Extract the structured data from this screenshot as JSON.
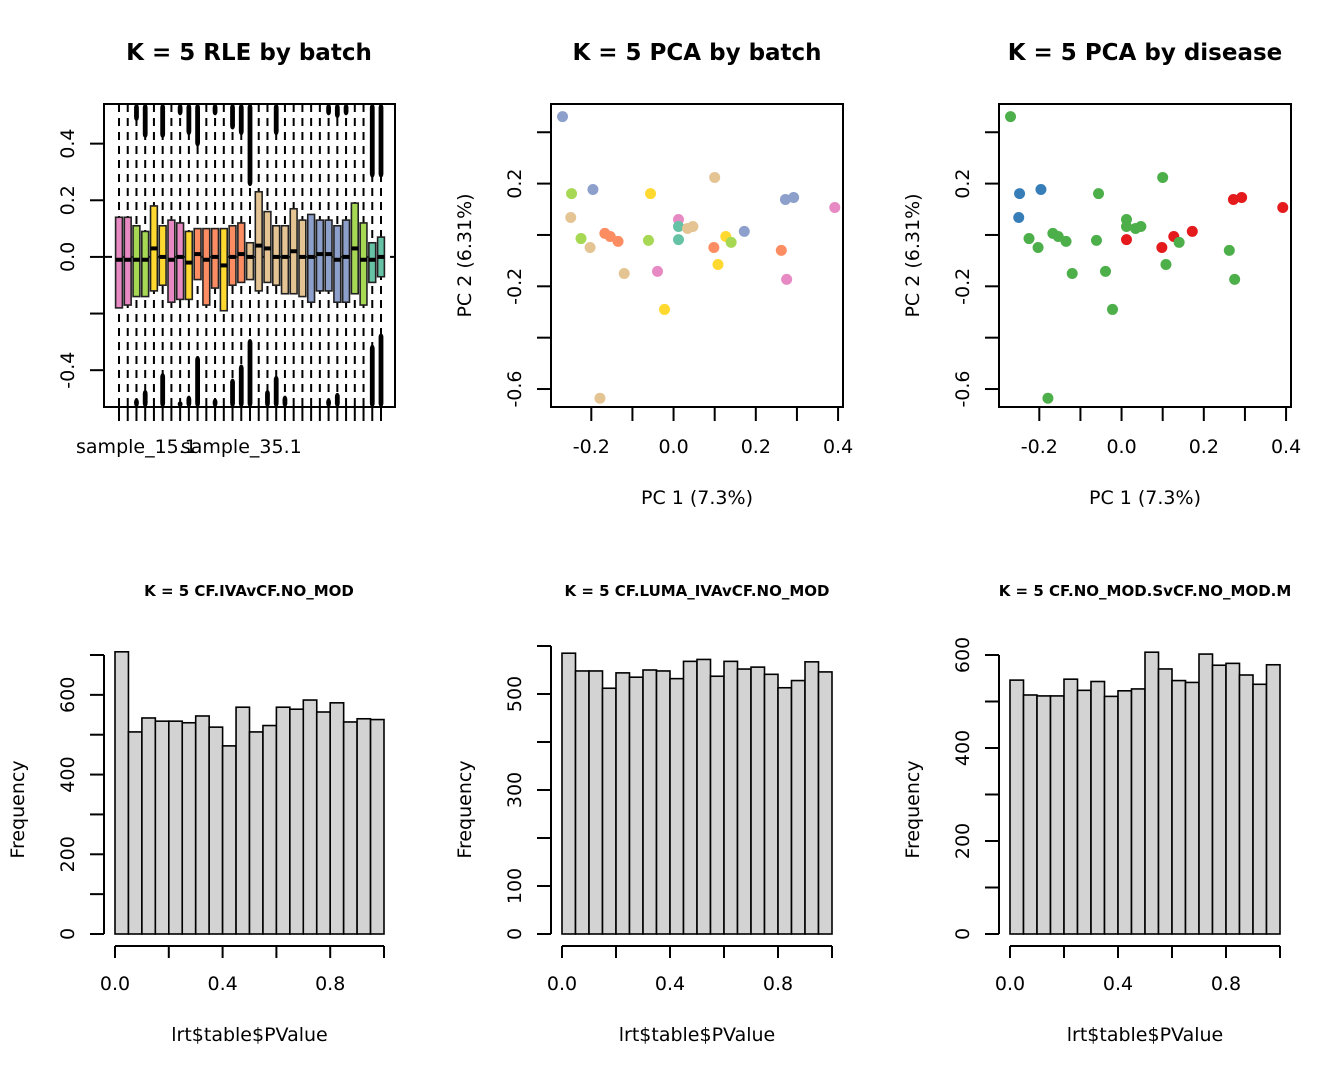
{
  "chart_data": [
    {
      "id": "rle",
      "type": "box",
      "title": "K = 5 RLE by batch",
      "xlabel": "",
      "ylabel": "",
      "ylim": [
        -0.53,
        0.54
      ],
      "yticks": [
        -0.4,
        -0.2,
        0.0,
        0.2,
        0.4
      ],
      "ytick_labels": [
        "-0.4",
        "",
        "0.0",
        "0.2",
        "0.4"
      ],
      "xtick_labels_shown": [
        {
          "index": 2,
          "label": "sample_15.1"
        },
        {
          "index": 14,
          "label": "sample_35.1"
        }
      ],
      "boxes": [
        {
          "batch": "pink",
          "q1": -0.18,
          "median": -0.01,
          "q3": 0.14,
          "top_outliers": 0.0,
          "bottom_outliers": 0.0
        },
        {
          "batch": "pink",
          "q1": -0.17,
          "median": -0.01,
          "q3": 0.14,
          "top_outliers": 0.0,
          "bottom_outliers": 0.0
        },
        {
          "batch": "green",
          "q1": -0.14,
          "median": -0.01,
          "q3": 0.11,
          "top_outliers": 0.48,
          "bottom_outliers": -0.5
        },
        {
          "batch": "green",
          "q1": -0.14,
          "median": -0.01,
          "q3": 0.09,
          "top_outliers": 0.42,
          "bottom_outliers": -0.47
        },
        {
          "batch": "yellow",
          "q1": -0.12,
          "median": 0.03,
          "q3": 0.18,
          "top_outliers": 0.0,
          "bottom_outliers": 0.0
        },
        {
          "batch": "yellow",
          "q1": -0.1,
          "median": 0.0,
          "q3": 0.11,
          "top_outliers": 0.42,
          "bottom_outliers": -0.41
        },
        {
          "batch": "pink",
          "q1": -0.16,
          "median": -0.01,
          "q3": 0.13,
          "top_outliers": 0.0,
          "bottom_outliers": 0.0
        },
        {
          "batch": "pink",
          "q1": -0.15,
          "median": 0.0,
          "q3": 0.12,
          "top_outliers": 0.5,
          "bottom_outliers": -0.51
        },
        {
          "batch": "yellow",
          "q1": -0.15,
          "median": -0.02,
          "q3": 0.09,
          "top_outliers": 0.43,
          "bottom_outliers": -0.49
        },
        {
          "batch": "orange",
          "q1": -0.08,
          "median": 0.01,
          "q3": 0.1,
          "top_outliers": 0.39,
          "bottom_outliers": -0.35
        },
        {
          "batch": "orange",
          "q1": -0.17,
          "median": -0.01,
          "q3": 0.1,
          "top_outliers": 0.0,
          "bottom_outliers": 0.0
        },
        {
          "batch": "orange",
          "q1": -0.11,
          "median": 0.0,
          "q3": 0.1,
          "top_outliers": 0.5,
          "bottom_outliers": -0.5
        },
        {
          "batch": "yellow",
          "q1": -0.19,
          "median": -0.03,
          "q3": 0.1,
          "top_outliers": 0.0,
          "bottom_outliers": 0.0
        },
        {
          "batch": "orange",
          "q1": -0.1,
          "median": 0.0,
          "q3": 0.11,
          "top_outliers": 0.45,
          "bottom_outliers": -0.43
        },
        {
          "batch": "orange",
          "q1": -0.09,
          "median": 0.01,
          "q3": 0.12,
          "top_outliers": 0.43,
          "bottom_outliers": -0.38
        },
        {
          "batch": "tan",
          "q1": -0.08,
          "median": 0.0,
          "q3": 0.05,
          "top_outliers": 0.25,
          "bottom_outliers": -0.29
        },
        {
          "batch": "tan",
          "q1": -0.12,
          "median": 0.04,
          "q3": 0.23,
          "top_outliers": 0.0,
          "bottom_outliers": 0.0
        },
        {
          "batch": "tan",
          "q1": -0.09,
          "median": 0.03,
          "q3": 0.16,
          "top_outliers": 0.0,
          "bottom_outliers": -0.47
        },
        {
          "batch": "tan",
          "q1": -0.1,
          "median": 0.0,
          "q3": 0.11,
          "top_outliers": 0.43,
          "bottom_outliers": -0.42
        },
        {
          "batch": "tan",
          "q1": -0.13,
          "median": 0.0,
          "q3": 0.11,
          "top_outliers": 0.0,
          "bottom_outliers": -0.49
        },
        {
          "batch": "tan",
          "q1": -0.13,
          "median": 0.02,
          "q3": 0.17,
          "top_outliers": 0.0,
          "bottom_outliers": 0.0
        },
        {
          "batch": "tan",
          "q1": -0.14,
          "median": 0.0,
          "q3": 0.13,
          "top_outliers": 0.0,
          "bottom_outliers": 0.0
        },
        {
          "batch": "blue",
          "q1": -0.16,
          "median": 0.0,
          "q3": 0.15,
          "top_outliers": 0.0,
          "bottom_outliers": 0.0
        },
        {
          "batch": "blue",
          "q1": -0.12,
          "median": 0.01,
          "q3": 0.13,
          "top_outliers": 0.0,
          "bottom_outliers": 0.0
        },
        {
          "batch": "blue",
          "q1": -0.12,
          "median": 0.01,
          "q3": 0.13,
          "top_outliers": 0.5,
          "bottom_outliers": -0.5
        },
        {
          "batch": "blue",
          "q1": -0.16,
          "median": -0.01,
          "q3": 0.11,
          "top_outliers": 0.49,
          "bottom_outliers": -0.48
        },
        {
          "batch": "blue",
          "q1": -0.16,
          "median": 0.0,
          "q3": 0.13,
          "top_outliers": 0.5,
          "bottom_outliers": 0.0
        },
        {
          "batch": "green",
          "q1": -0.13,
          "median": 0.03,
          "q3": 0.19,
          "top_outliers": 0.0,
          "bottom_outliers": 0.0
        },
        {
          "batch": "green",
          "q1": -0.17,
          "median": -0.01,
          "q3": 0.12,
          "top_outliers": 0.0,
          "bottom_outliers": 0.0
        },
        {
          "batch": "teal",
          "q1": -0.09,
          "median": -0.01,
          "q3": 0.05,
          "top_outliers": 0.28,
          "bottom_outliers": -0.31
        },
        {
          "batch": "teal",
          "q1": -0.07,
          "median": 0.0,
          "q3": 0.07,
          "top_outliers": 0.28,
          "bottom_outliers": -0.27
        }
      ]
    },
    {
      "id": "pca-batch",
      "type": "scatter",
      "title": "K = 5 PCA by batch",
      "xlabel": "PC 1 (7.3%)",
      "ylabel": "PC 2 (6.31%)",
      "xlim": [
        -0.298,
        0.412
      ],
      "ylim": [
        -0.67,
        0.51
      ],
      "xticks": [
        -0.2,
        -0.1,
        0.0,
        0.1,
        0.2,
        0.3,
        0.4
      ],
      "xtick_labels": [
        "-0.2",
        "",
        "0.0",
        "",
        "0.2",
        "",
        "0.4"
      ],
      "yticks": [
        -0.6,
        -0.4,
        -0.2,
        0.0,
        0.2,
        0.4
      ],
      "ytick_labels": [
        "-0.6",
        "",
        "-0.2",
        "",
        "0.2",
        ""
      ],
      "points": [
        {
          "x": -0.27,
          "y": 0.461,
          "group": "blue"
        },
        {
          "x": -0.248,
          "y": 0.161,
          "group": "green"
        },
        {
          "x": -0.196,
          "y": 0.177,
          "group": "blue"
        },
        {
          "x": -0.25,
          "y": 0.068,
          "group": "tan"
        },
        {
          "x": -0.225,
          "y": -0.014,
          "group": "green"
        },
        {
          "x": -0.167,
          "y": 0.006,
          "group": "orange"
        },
        {
          "x": -0.154,
          "y": -0.006,
          "group": "orange"
        },
        {
          "x": -0.135,
          "y": -0.025,
          "group": "orange"
        },
        {
          "x": -0.203,
          "y": -0.049,
          "group": "tan"
        },
        {
          "x": -0.061,
          "y": -0.021,
          "group": "green"
        },
        {
          "x": -0.056,
          "y": 0.161,
          "group": "yellow"
        },
        {
          "x": -0.12,
          "y": -0.15,
          "group": "tan"
        },
        {
          "x": -0.039,
          "y": -0.142,
          "group": "pink"
        },
        {
          "x": -0.022,
          "y": -0.29,
          "group": "yellow"
        },
        {
          "x": -0.179,
          "y": -0.636,
          "group": "tan"
        },
        {
          "x": 0.012,
          "y": 0.06,
          "group": "pink"
        },
        {
          "x": 0.012,
          "y": 0.033,
          "group": "teal"
        },
        {
          "x": 0.034,
          "y": 0.025,
          "group": "tan"
        },
        {
          "x": 0.047,
          "y": 0.033,
          "group": "tan"
        },
        {
          "x": 0.012,
          "y": -0.018,
          "group": "teal"
        },
        {
          "x": 0.1,
          "y": 0.224,
          "group": "tan"
        },
        {
          "x": 0.098,
          "y": -0.049,
          "group": "orange"
        },
        {
          "x": 0.127,
          "y": -0.006,
          "group": "yellow"
        },
        {
          "x": 0.14,
          "y": -0.029,
          "group": "green"
        },
        {
          "x": 0.172,
          "y": 0.014,
          "group": "blue"
        },
        {
          "x": 0.108,
          "y": -0.115,
          "group": "yellow"
        },
        {
          "x": 0.272,
          "y": 0.138,
          "group": "blue"
        },
        {
          "x": 0.292,
          "y": 0.146,
          "group": "blue"
        },
        {
          "x": 0.262,
          "y": -0.06,
          "group": "orange"
        },
        {
          "x": 0.275,
          "y": -0.173,
          "group": "pink"
        },
        {
          "x": 0.392,
          "y": 0.107,
          "group": "pink"
        }
      ]
    },
    {
      "id": "pca-disease",
      "type": "scatter",
      "title": "K = 5 PCA by disease",
      "xlabel": "PC 1 (7.3%)",
      "ylabel": "PC 2 (6.31%)",
      "xlim": [
        -0.298,
        0.412
      ],
      "ylim": [
        -0.67,
        0.51
      ],
      "xticks": [
        -0.2,
        -0.1,
        0.0,
        0.1,
        0.2,
        0.3,
        0.4
      ],
      "xtick_labels": [
        "-0.2",
        "",
        "0.0",
        "",
        "0.2",
        "",
        "0.4"
      ],
      "yticks": [
        -0.6,
        -0.4,
        -0.2,
        0.0,
        0.2,
        0.4
      ],
      "ytick_labels": [
        "-0.6",
        "",
        "-0.2",
        "",
        "0.2",
        ""
      ],
      "points": [
        {
          "x": -0.27,
          "y": 0.461,
          "group": "green"
        },
        {
          "x": -0.248,
          "y": 0.161,
          "group": "blue"
        },
        {
          "x": -0.196,
          "y": 0.177,
          "group": "blue"
        },
        {
          "x": -0.25,
          "y": 0.068,
          "group": "blue"
        },
        {
          "x": -0.225,
          "y": -0.014,
          "group": "green"
        },
        {
          "x": -0.167,
          "y": 0.006,
          "group": "green"
        },
        {
          "x": -0.154,
          "y": -0.006,
          "group": "green"
        },
        {
          "x": -0.135,
          "y": -0.025,
          "group": "green"
        },
        {
          "x": -0.203,
          "y": -0.049,
          "group": "green"
        },
        {
          "x": -0.061,
          "y": -0.021,
          "group": "green"
        },
        {
          "x": -0.056,
          "y": 0.161,
          "group": "green"
        },
        {
          "x": -0.12,
          "y": -0.15,
          "group": "green"
        },
        {
          "x": -0.039,
          "y": -0.142,
          "group": "green"
        },
        {
          "x": -0.022,
          "y": -0.29,
          "group": "green"
        },
        {
          "x": -0.179,
          "y": -0.636,
          "group": "green"
        },
        {
          "x": 0.012,
          "y": 0.06,
          "group": "green"
        },
        {
          "x": 0.012,
          "y": 0.033,
          "group": "green"
        },
        {
          "x": 0.034,
          "y": 0.025,
          "group": "green"
        },
        {
          "x": 0.047,
          "y": 0.033,
          "group": "green"
        },
        {
          "x": 0.012,
          "y": -0.018,
          "group": "red"
        },
        {
          "x": 0.1,
          "y": 0.224,
          "group": "green"
        },
        {
          "x": 0.098,
          "y": -0.049,
          "group": "red"
        },
        {
          "x": 0.127,
          "y": -0.006,
          "group": "red"
        },
        {
          "x": 0.14,
          "y": -0.029,
          "group": "green"
        },
        {
          "x": 0.172,
          "y": 0.014,
          "group": "red"
        },
        {
          "x": 0.108,
          "y": -0.115,
          "group": "green"
        },
        {
          "x": 0.272,
          "y": 0.138,
          "group": "red"
        },
        {
          "x": 0.292,
          "y": 0.146,
          "group": "red"
        },
        {
          "x": 0.262,
          "y": -0.06,
          "group": "green"
        },
        {
          "x": 0.275,
          "y": -0.173,
          "group": "green"
        },
        {
          "x": 0.392,
          "y": 0.107,
          "group": "red"
        }
      ]
    },
    {
      "id": "hist1",
      "type": "bar",
      "title": "K = 5 CF.IVAvCF.NO_MOD",
      "xlabel": "lrt$table$PValue",
      "ylabel": "Frequency",
      "bin_width": 0.05,
      "xlim": [
        0,
        1
      ],
      "xticks": [
        0.0,
        0.2,
        0.4,
        0.6,
        0.8,
        1.0
      ],
      "xtick_labels": [
        "0.0",
        "",
        "0.4",
        "",
        "0.8",
        ""
      ],
      "ylim": [
        0,
        700
      ],
      "yticks": [
        0,
        100,
        200,
        300,
        400,
        500,
        600,
        700
      ],
      "ytick_labels": [
        "0",
        "",
        "200",
        "",
        "400",
        "",
        "600",
        ""
      ],
      "values": [
        708,
        507,
        542,
        534,
        534,
        530,
        547,
        519,
        472,
        569,
        507,
        523,
        569,
        564,
        587,
        557,
        580,
        532,
        540,
        538
      ]
    },
    {
      "id": "hist2",
      "type": "bar",
      "title": "K = 5 CF.LUMA_IVAvCF.NO_MOD",
      "xlabel": "lrt$table$PValue",
      "ylabel": "Frequency",
      "bin_width": 0.05,
      "xlim": [
        0,
        1
      ],
      "xticks": [
        0.0,
        0.2,
        0.4,
        0.6,
        0.8,
        1.0
      ],
      "xtick_labels": [
        "0.0",
        "",
        "0.4",
        "",
        "0.8",
        ""
      ],
      "ylim": [
        0,
        600
      ],
      "yticks": [
        0,
        100,
        200,
        300,
        400,
        500,
        600
      ],
      "ytick_labels": [
        "0",
        "100",
        "",
        "300",
        "",
        "500",
        ""
      ],
      "values": [
        585,
        548,
        548,
        512,
        544,
        535,
        550,
        548,
        532,
        568,
        572,
        537,
        568,
        552,
        556,
        541,
        513,
        528,
        567,
        546
      ]
    },
    {
      "id": "hist3",
      "type": "bar",
      "title": "K = 5 CF.NO_MOD.SvCF.NO_MOD.M",
      "xlabel": "lrt$table$PValue",
      "ylabel": "Frequency",
      "bin_width": 0.05,
      "xlim": [
        0,
        1
      ],
      "xticks": [
        0.0,
        0.2,
        0.4,
        0.6,
        0.8,
        1.0
      ],
      "xtick_labels": [
        "0.0",
        "",
        "0.4",
        "",
        "0.8",
        ""
      ],
      "ylim": [
        0,
        600
      ],
      "yticks": [
        0,
        100,
        200,
        300,
        400,
        500,
        600
      ],
      "ytick_labels": [
        "0",
        "",
        "200",
        "",
        "400",
        "",
        "600"
      ],
      "values": [
        546,
        514,
        512,
        512,
        548,
        524,
        543,
        511,
        523,
        527,
        606,
        570,
        545,
        541,
        602,
        578,
        582,
        557,
        537,
        579
      ]
    }
  ],
  "palette": {
    "batch": {
      "teal": "#66C2A5",
      "orange": "#FC8D62",
      "blue": "#8DA0CB",
      "pink": "#E78AC3",
      "green": "#A6D854",
      "yellow": "#FFD92F",
      "tan": "#E5C494"
    },
    "disease": {
      "red": "#E41A1C",
      "blue": "#377EB8",
      "green": "#4DAF4A"
    },
    "hist_fill": "#D3D3D3"
  }
}
